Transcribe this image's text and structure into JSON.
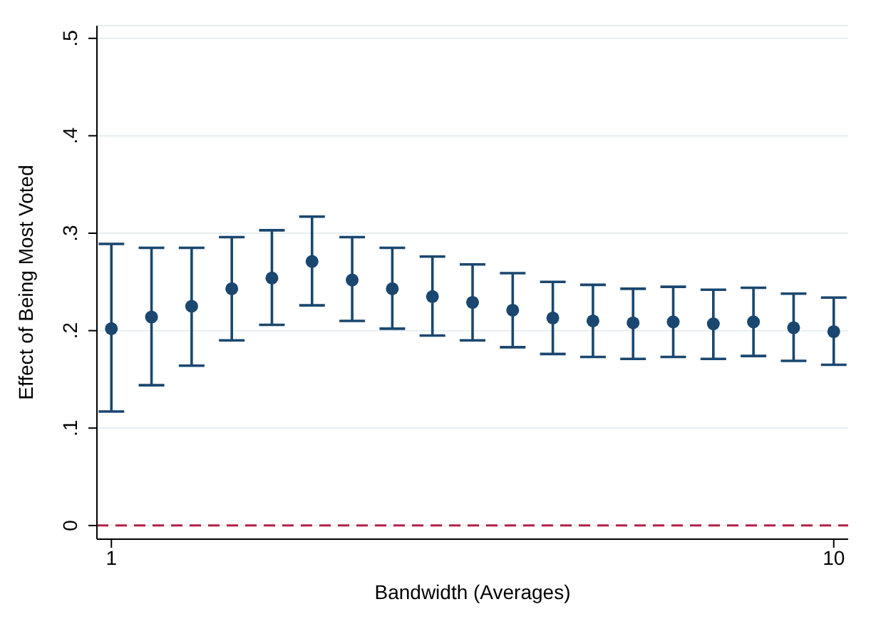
{
  "chart_data": {
    "type": "scatter",
    "xlabel": "Bandwidth (Averages)",
    "ylabel": "Effect of Being Most Voted",
    "x": [
      1,
      1.5,
      2,
      2.5,
      3,
      3.5,
      4,
      4.5,
      5,
      5.5,
      6,
      6.5,
      7,
      7.5,
      8,
      8.5,
      9,
      9.5,
      10
    ],
    "series": [
      {
        "color": "#1a476f",
        "values": [
          0.202,
          0.214,
          0.225,
          0.243,
          0.254,
          0.271,
          0.252,
          0.243,
          0.235,
          0.229,
          0.221,
          0.213,
          0.21,
          0.208,
          0.209,
          0.207,
          0.209,
          0.203,
          0.199
        ],
        "errors": [
          [
            0.117,
            0.289
          ],
          [
            0.144,
            0.285
          ],
          [
            0.164,
            0.285
          ],
          [
            0.19,
            0.296
          ],
          [
            0.206,
            0.303
          ],
          [
            0.226,
            0.317
          ],
          [
            0.21,
            0.296
          ],
          [
            0.202,
            0.285
          ],
          [
            0.195,
            0.276
          ],
          [
            0.19,
            0.268
          ],
          [
            0.183,
            0.259
          ],
          [
            0.176,
            0.25
          ],
          [
            0.173,
            0.247
          ],
          [
            0.171,
            0.243
          ],
          [
            0.173,
            0.245
          ],
          [
            0.171,
            0.242
          ],
          [
            0.174,
            0.244
          ],
          [
            0.169,
            0.238
          ],
          [
            0.165,
            0.234
          ]
        ]
      }
    ],
    "xlim": [
      0.82,
      10.18
    ],
    "xticks": [
      1,
      10
    ],
    "ylim": [
      -0.014,
      0.513
    ],
    "yticks": [
      {
        "value": 0,
        "label": "0"
      },
      {
        "value": 0.1,
        "label": ".1"
      },
      {
        "value": 0.2,
        "label": ".2"
      },
      {
        "value": 0.3,
        "label": ".3"
      },
      {
        "value": 0.4,
        "label": ".4"
      },
      {
        "value": 0.5,
        "label": ".5"
      }
    ],
    "ref_lines": [
      {
        "axis": "y",
        "value": 0,
        "color": "#b22248",
        "line_style": "dashed"
      }
    ],
    "grid": "y",
    "marker": "circle",
    "legend": false
  }
}
